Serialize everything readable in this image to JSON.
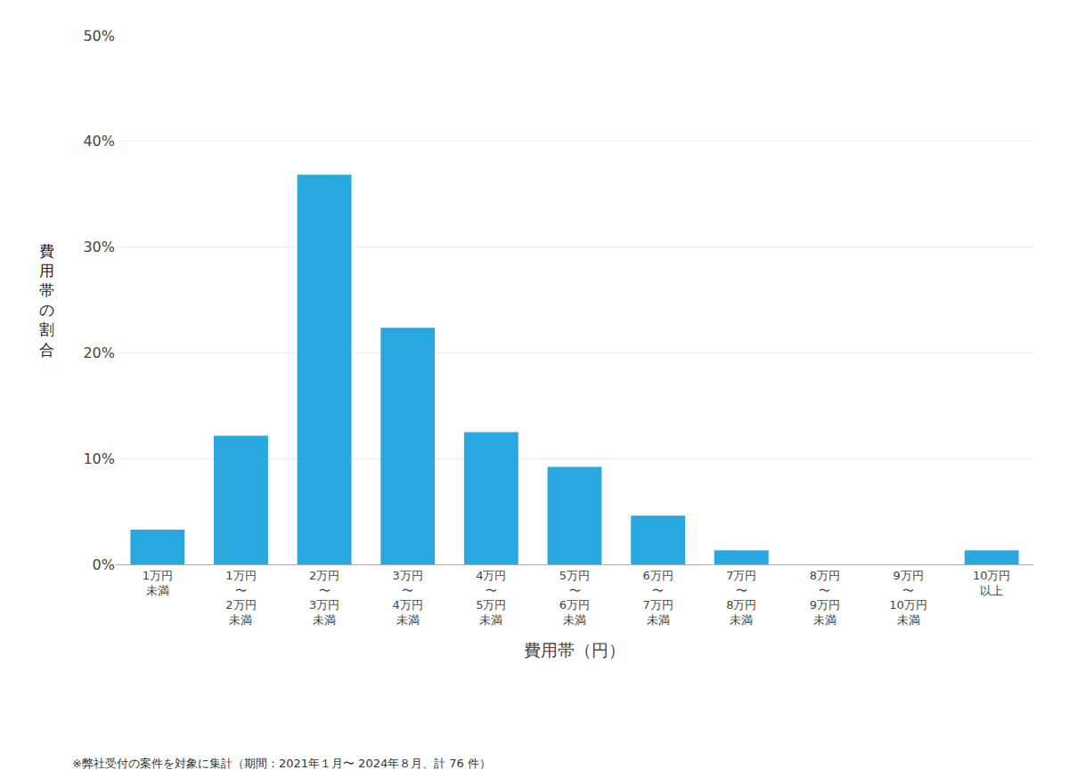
{
  "chart_data": {
    "type": "bar",
    "categories": [
      "1万円\n未満",
      "1万円\n〜\n2万円\n未満",
      "2万円\n〜\n3万円\n未満",
      "3万円\n〜\n4万円\n未満",
      "4万円\n〜\n5万円\n未満",
      "5万円\n〜\n6万円\n未満",
      "6万円\n〜\n7万円\n未満",
      "7万円\n〜\n8万円\n未満",
      "8万円\n〜\n9万円\n未満",
      "9万円\n〜\n10万円\n未満",
      "10万円\n以上"
    ],
    "values": [
      3.29,
      12.17,
      36.84,
      22.37,
      12.5,
      9.21,
      4.61,
      1.32,
      0.0,
      0.0,
      1.32
    ],
    "color": "#29a8e0",
    "xlabel": "費用帯（円）",
    "ylabel": "費用帯の割合",
    "annotations": [
      "※弊社受付の案件を対象に集計（期間：2021年１月〜 2024年８月、計 76 件）"
    ],
    "ylim": [
      0,
      50
    ],
    "yticks": [
      {
        "value": 0,
        "label": "0%"
      },
      {
        "value": 10,
        "label": "10%"
      },
      {
        "value": 20,
        "label": "20%"
      },
      {
        "value": 30,
        "label": "30%"
      },
      {
        "value": 40,
        "label": "40%"
      },
      {
        "value": 50,
        "label": "50%"
      }
    ],
    "grid": true
  }
}
